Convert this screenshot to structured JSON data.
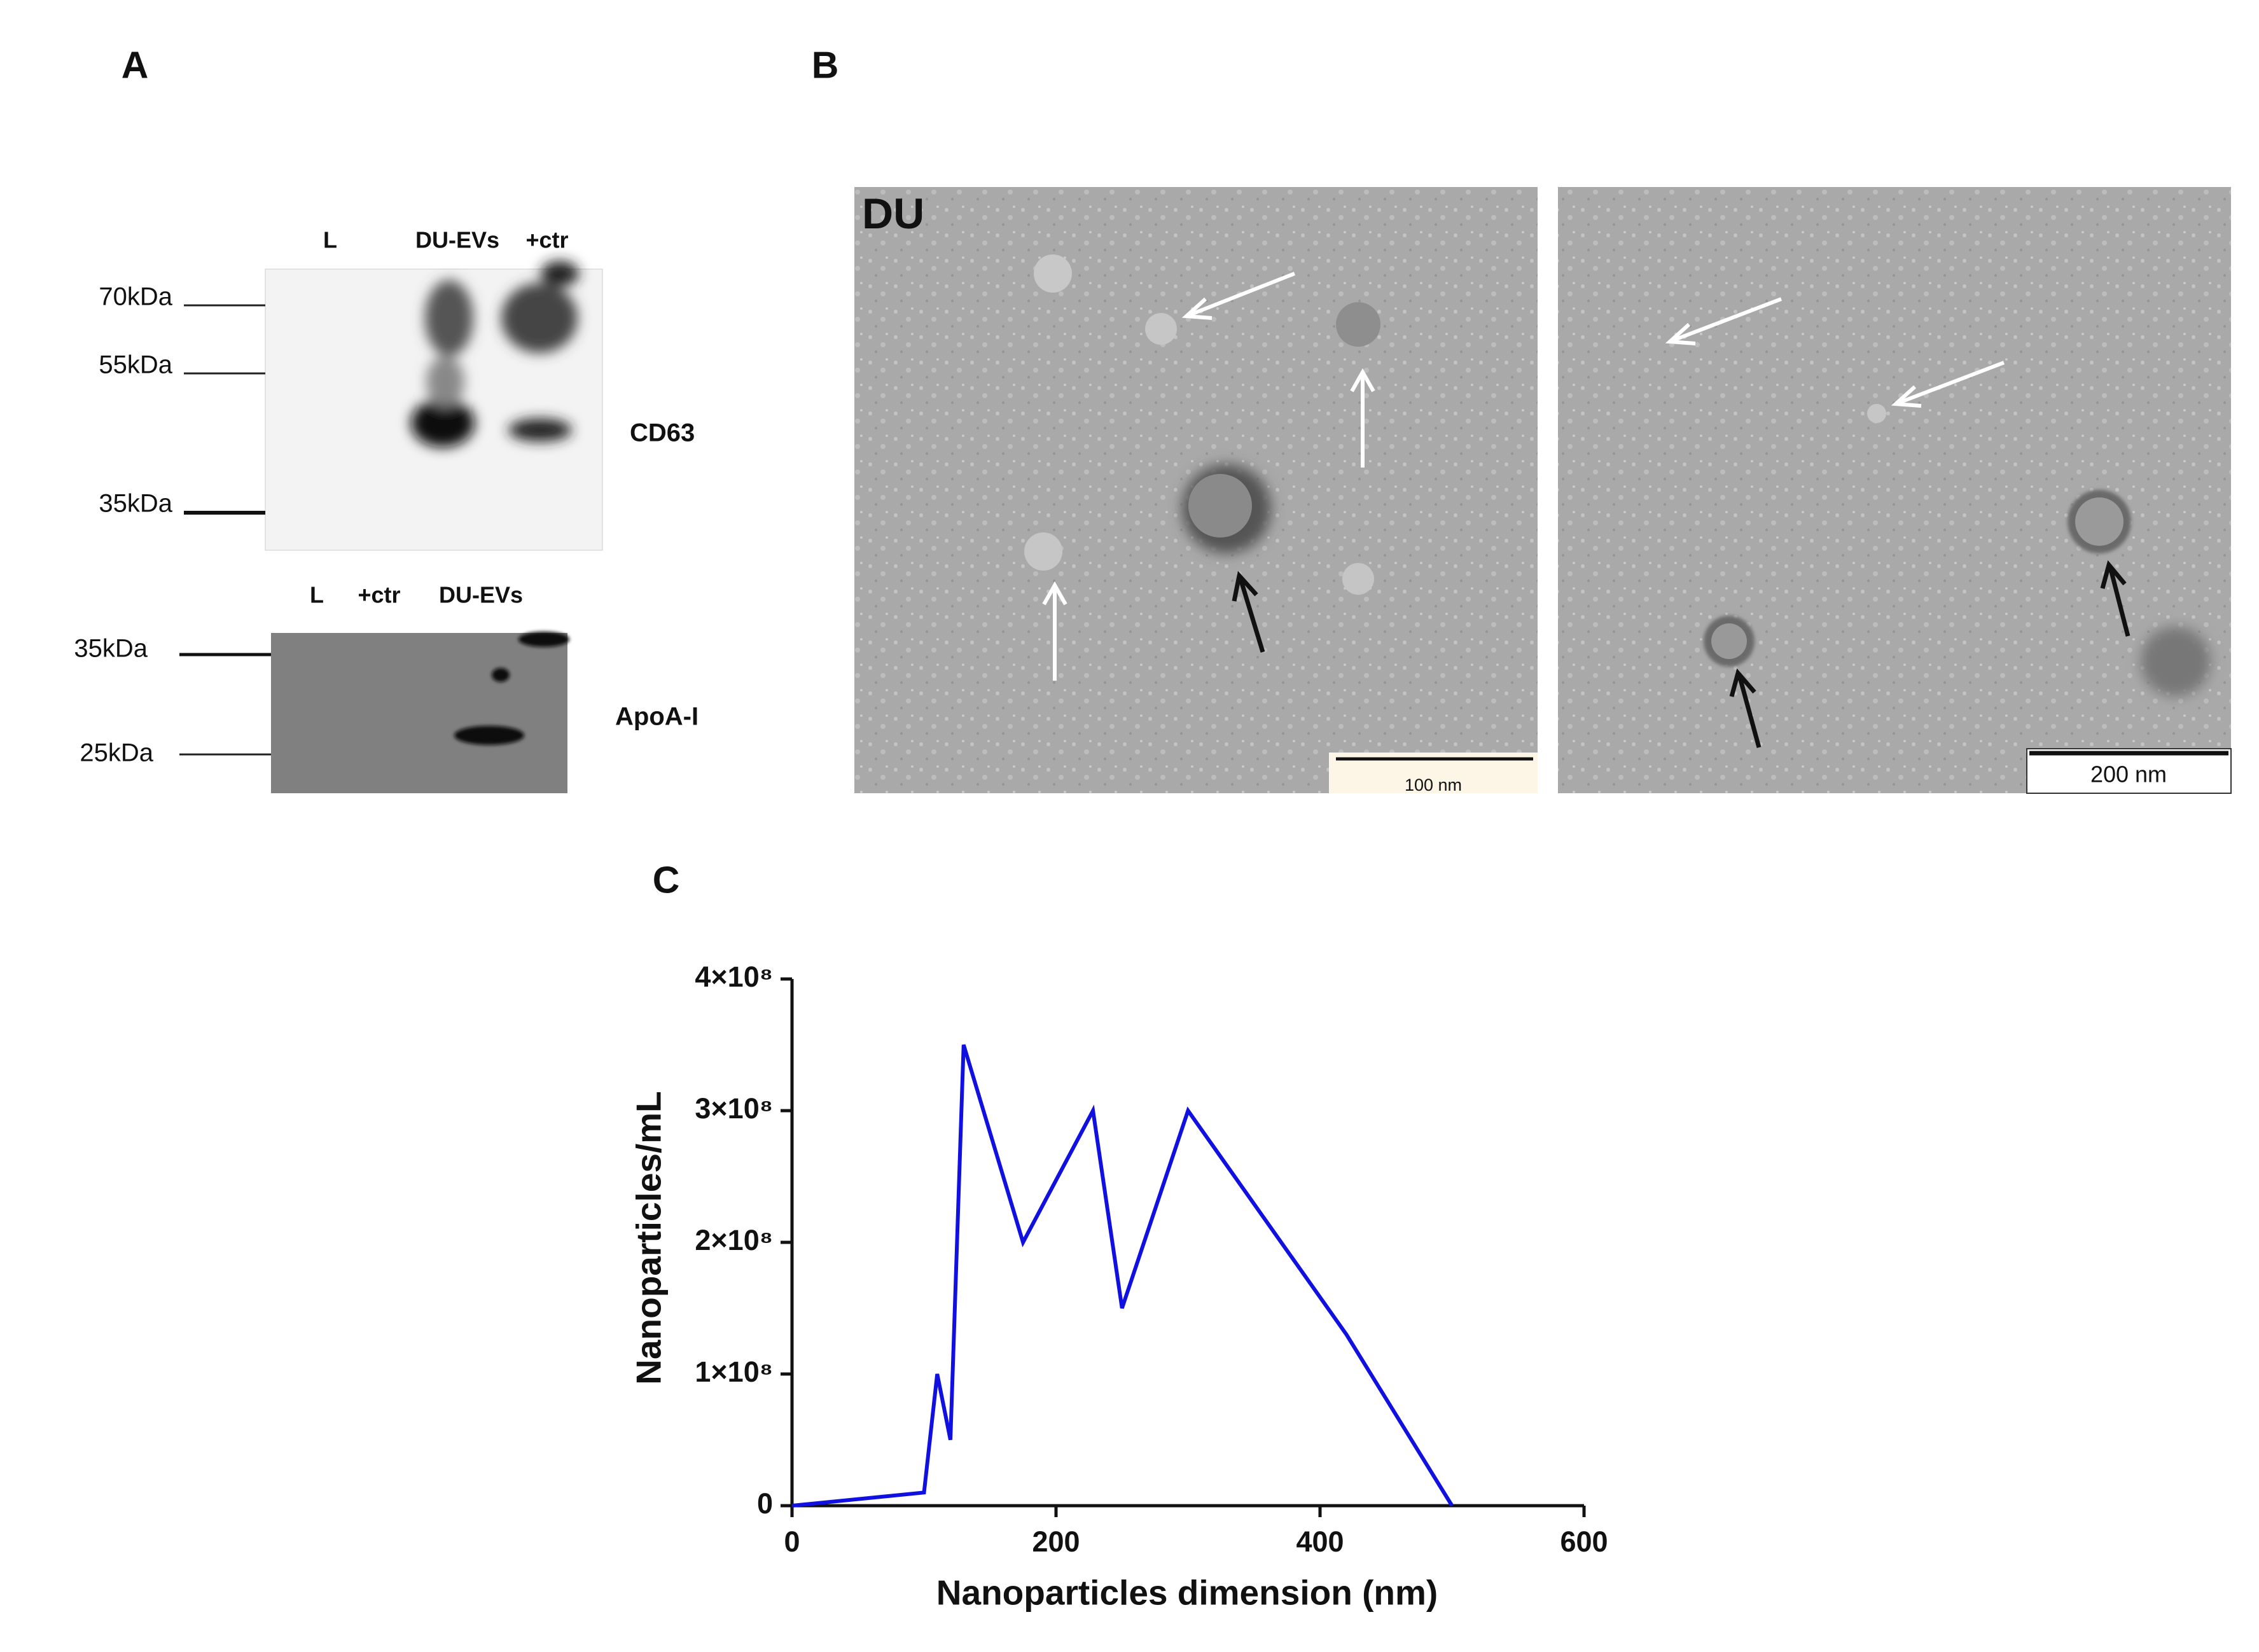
{
  "panel_a": {
    "label": "A",
    "cd63_blot": {
      "lanes": [
        "L",
        "DU-EVs",
        "+ctr"
      ],
      "markers": [
        "70kDa",
        "55kDa",
        "35kDa"
      ],
      "protein": "CD63"
    },
    "apoa1_blot": {
      "lanes": [
        "L",
        "+ctr",
        "DU-EVs"
      ],
      "markers": [
        "35kDa",
        "25kDa"
      ],
      "protein": "ApoA-I"
    }
  },
  "panel_b": {
    "label": "B",
    "image_label": "DU",
    "scale_bars": [
      "100 nm",
      "200 nm"
    ]
  },
  "chart_data": {
    "type": "line",
    "panel_label": "C",
    "x_label": "Nanoparticles dimension (nm)",
    "y_label": "Nanoparticles/mL",
    "x": [
      0,
      100,
      110,
      120,
      130,
      175,
      228,
      250,
      300,
      420,
      500
    ],
    "values": [
      0,
      10000000,
      100000000,
      50000000,
      350000000,
      200000000,
      300000000,
      150000000,
      300000000,
      130000000,
      0
    ],
    "color": "#1010e0",
    "xlim": [
      0,
      600
    ],
    "xticks": [
      0,
      200,
      400,
      600
    ],
    "ylim": [
      0,
      400000000
    ],
    "yticks": [
      0,
      {
        "value": 100000000,
        "label": "1×10⁸"
      },
      {
        "value": 200000000,
        "label": "2×10⁸"
      },
      {
        "value": 300000000,
        "label": "3×10⁸"
      },
      {
        "value": 400000000,
        "label": "4×10⁸"
      }
    ]
  }
}
